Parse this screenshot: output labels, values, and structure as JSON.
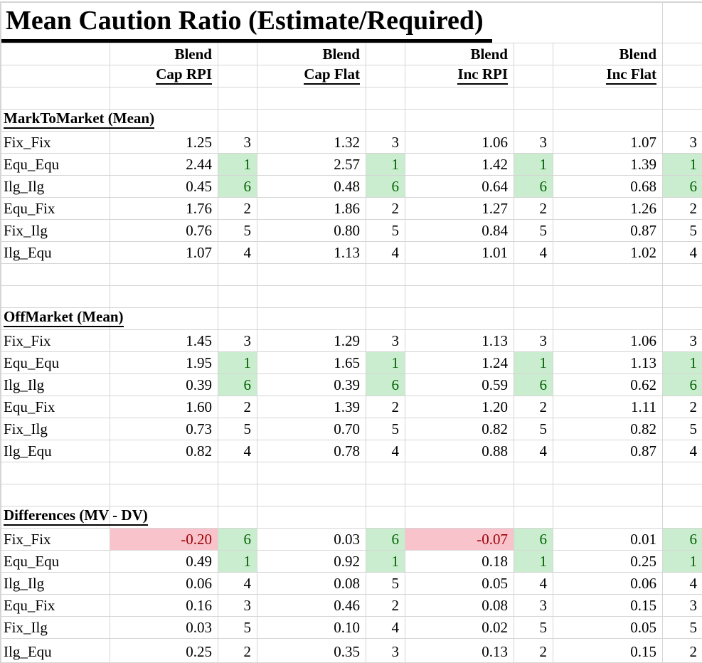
{
  "title": "Mean Caution Ratio (Estimate/Required)",
  "header": {
    "group_label": "Blend",
    "groups": [
      {
        "label": "Cap RPI",
        "has_flags": true
      },
      {
        "label": "Cap Flat",
        "has_flags": true
      },
      {
        "label": "Inc RPI",
        "has_flags": true
      },
      {
        "label": "Inc Flat",
        "has_flags": false
      }
    ]
  },
  "sections": [
    {
      "header": "MarkToMarket (Mean)",
      "rows": [
        {
          "label": "Fix_Fix",
          "values": [
            "1.25",
            "1.32",
            "1.06",
            "1.07"
          ],
          "ranks": [
            "3",
            "3",
            "3",
            "3"
          ]
        },
        {
          "label": "Equ_Equ",
          "values": [
            "2.44",
            "2.57",
            "1.42",
            "1.39"
          ],
          "ranks": [
            "1",
            "1",
            "1",
            "1"
          ]
        },
        {
          "label": "Ilg_Ilg",
          "values": [
            "0.45",
            "0.48",
            "0.64",
            "0.68"
          ],
          "ranks": [
            "6",
            "6",
            "6",
            "6"
          ]
        },
        {
          "label": "Equ_Fix",
          "values": [
            "1.76",
            "1.86",
            "1.27",
            "1.26"
          ],
          "ranks": [
            "2",
            "2",
            "2",
            "2"
          ]
        },
        {
          "label": "Fix_Ilg",
          "values": [
            "0.76",
            "0.80",
            "0.84",
            "0.87"
          ],
          "ranks": [
            "5",
            "5",
            "5",
            "5"
          ]
        },
        {
          "label": "Ilg_Equ",
          "values": [
            "1.07",
            "1.13",
            "1.01",
            "1.02"
          ],
          "ranks": [
            "4",
            "4",
            "4",
            "4"
          ]
        }
      ]
    },
    {
      "header": "OffMarket (Mean)",
      "rows": [
        {
          "label": "Fix_Fix",
          "values": [
            "1.45",
            "1.29",
            "1.13",
            "1.06"
          ],
          "ranks": [
            "3",
            "3",
            "3",
            "3"
          ]
        },
        {
          "label": "Equ_Equ",
          "values": [
            "1.95",
            "1.65",
            "1.24",
            "1.13"
          ],
          "ranks": [
            "1",
            "1",
            "1",
            "1"
          ]
        },
        {
          "label": "Ilg_Ilg",
          "values": [
            "0.39",
            "0.39",
            "0.59",
            "0.62"
          ],
          "ranks": [
            "6",
            "6",
            "6",
            "6"
          ]
        },
        {
          "label": "Equ_Fix",
          "values": [
            "1.60",
            "1.39",
            "1.20",
            "1.11"
          ],
          "ranks": [
            "2",
            "2",
            "2",
            "2"
          ]
        },
        {
          "label": "Fix_Ilg",
          "values": [
            "0.73",
            "0.70",
            "0.82",
            "0.82"
          ],
          "ranks": [
            "5",
            "5",
            "5",
            "5"
          ]
        },
        {
          "label": "Ilg_Equ",
          "values": [
            "0.82",
            "0.78",
            "0.88",
            "0.87"
          ],
          "ranks": [
            "4",
            "4",
            "4",
            "4"
          ]
        }
      ]
    },
    {
      "header": "Differences (MV - DV)",
      "rows": [
        {
          "label": "Fix_Fix",
          "values": [
            "-0.20",
            "0.03",
            "-0.07",
            "0.01"
          ],
          "ranks": [
            "6",
            "6",
            "6",
            "6"
          ]
        },
        {
          "label": "Equ_Equ",
          "values": [
            "0.49",
            "0.92",
            "0.18",
            "0.25"
          ],
          "ranks": [
            "1",
            "1",
            "1",
            "1"
          ]
        },
        {
          "label": "Ilg_Ilg",
          "values": [
            "0.06",
            "0.08",
            "0.05",
            "0.06"
          ],
          "ranks": [
            "4",
            "5",
            "4",
            "4"
          ]
        },
        {
          "label": "Equ_Fix",
          "values": [
            "0.16",
            "0.46",
            "0.08",
            "0.15"
          ],
          "ranks": [
            "3",
            "2",
            "3",
            "3"
          ]
        },
        {
          "label": "Fix_Ilg",
          "values": [
            "0.03",
            "0.10",
            "0.02",
            "0.05"
          ],
          "ranks": [
            "5",
            "4",
            "5",
            "5"
          ]
        },
        {
          "label": "Ilg_Equ",
          "values": [
            "0.25",
            "0.35",
            "0.13",
            "0.15"
          ],
          "ranks": [
            "2",
            "3",
            "2",
            "2"
          ]
        }
      ]
    }
  ],
  "colors": {
    "gridline": "#d5d5d5",
    "highlight_green_bg": "#c9edce",
    "highlight_green_text": "#006100",
    "highlight_red_bg": "#f8c3ca",
    "highlight_red_text": "#9c0006",
    "comment_indicator_green": "#1d7a36"
  },
  "icons": {
    "comment_indicator": "comment-indicator-icon"
  }
}
